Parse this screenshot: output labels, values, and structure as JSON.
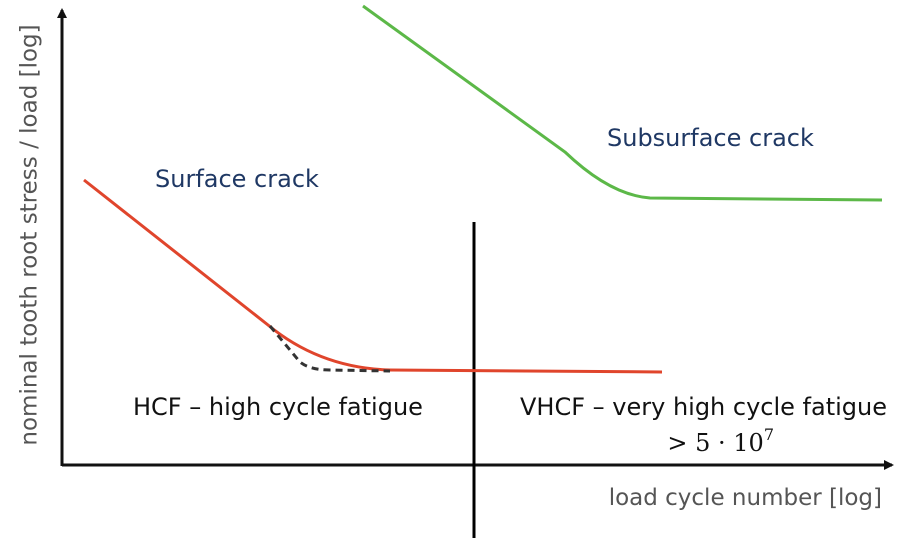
{
  "axes": {
    "y_label": "nominal tooth root stress / load [log]",
    "x_label": "load cycle number [log]"
  },
  "curves": {
    "surface": {
      "label": "Surface crack"
    },
    "subsurface": {
      "label": "Subsurface crack"
    }
  },
  "regions": {
    "hcf": "HCF – high cycle fatigue",
    "vhcf": "VHCF – very high cycle fatigue",
    "threshold": {
      "base": "> 5 · 10",
      "exponent": "7"
    }
  }
}
